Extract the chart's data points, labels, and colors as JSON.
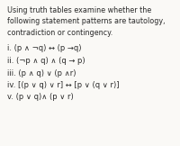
{
  "title_lines": [
    "Using truth tables examine whether the",
    "following statement patterns are tautology,",
    "contradiction or contingency."
  ],
  "items": [
    "i. (p ∧ ¬q) ↔ (p →q)",
    "ii. (¬p ∧ q) ∧ (q → p)",
    "iii. (p ∧ q) ∨ (p ∧r)",
    "iv. [(p ∨ q) ∨ r] ↔ [p ∨ (q ∨ r)]",
    "v. (p ∨ q)∧ (p ∨ r)"
  ],
  "bg_color": "#faf9f6",
  "text_color": "#2a2a2a",
  "title_fontsize": 5.8,
  "item_fontsize": 6.0,
  "fig_width": 2.0,
  "fig_height": 1.62,
  "dpi": 100
}
